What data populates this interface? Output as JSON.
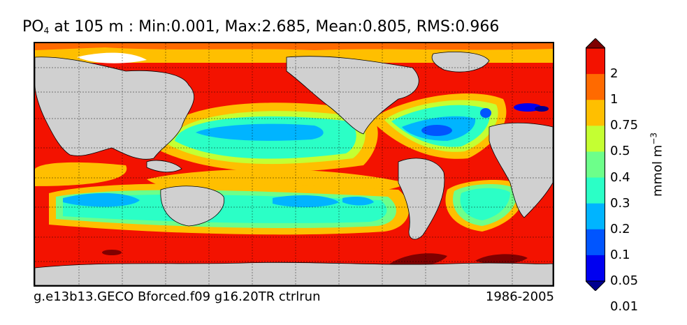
{
  "title": {
    "variable": "PO",
    "subscript": "4",
    "rest": " at 105 m : Min:0.001, Max:2.685, Mean:0.805, RMS:0.966"
  },
  "footer": {
    "run_name": "g.e13b13.GECO Bforced.f09 g16.20TR ctrlrun",
    "period": "1986-2005"
  },
  "colorbar": {
    "unit_base": "mmol m",
    "unit_exponent": "−3",
    "ticks": [
      "2",
      "1",
      "0.75",
      "0.5",
      "0.4",
      "0.3",
      "0.2",
      "0.1",
      "0.05",
      "0.01"
    ],
    "colors": [
      "#7f0000",
      "#f31200",
      "#ff6a00",
      "#ffbf00",
      "#c4ff32",
      "#6dff8a",
      "#2bffc6",
      "#00b4ff",
      "#0055ff",
      "#0000f0",
      "#00008f"
    ]
  },
  "map": {
    "land_color": "#d0d0d0",
    "ice_color": "#ffffff"
  }
}
